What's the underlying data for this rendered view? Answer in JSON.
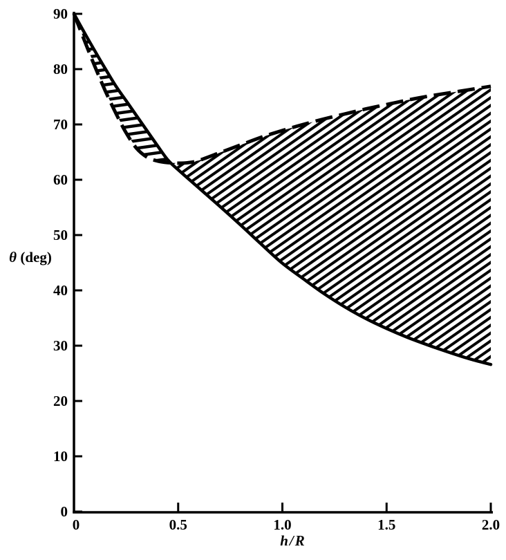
{
  "chart_data": {
    "type": "line",
    "title": "",
    "xlabel": "h/R",
    "ylabel": "θ (deg)",
    "ylabel_symbol": "θ",
    "ylabel_rest": " (deg)",
    "xlim": [
      0,
      2
    ],
    "ylim": [
      0,
      90
    ],
    "grid": false,
    "legend": null,
    "ink_color": "#000000",
    "background_color": "#ffffff",
    "x_tick_values": [
      0,
      0.5,
      1.0,
      1.5,
      2.0
    ],
    "x_tick_labels": [
      "0",
      "0.5",
      "1.0",
      "1.5",
      "2.0"
    ],
    "y_tick_values": [
      0,
      10,
      20,
      30,
      40,
      50,
      60,
      70,
      80,
      90
    ],
    "y_tick_labels": [
      "0",
      "10",
      "20",
      "30",
      "40",
      "50",
      "60",
      "70",
      "80",
      "90"
    ],
    "series": [
      {
        "name": "solid-lower-boundary",
        "style": "solid",
        "points": [
          [
            0,
            90
          ],
          [
            0.05,
            86.6
          ],
          [
            0.1,
            83.3
          ],
          [
            0.15,
            80.1
          ],
          [
            0.2,
            77.0
          ],
          [
            0.25,
            74.3
          ],
          [
            0.3,
            71.6
          ],
          [
            0.35,
            68.9
          ],
          [
            0.4,
            66.2
          ],
          [
            0.45,
            63.6
          ],
          [
            0.5,
            61.8
          ],
          [
            0.6,
            58.5
          ],
          [
            0.7,
            55.2
          ],
          [
            0.8,
            51.8
          ],
          [
            0.9,
            48.3
          ],
          [
            1.0,
            44.9
          ],
          [
            1.1,
            42.1
          ],
          [
            1.2,
            39.4
          ],
          [
            1.3,
            37.0
          ],
          [
            1.4,
            34.9
          ],
          [
            1.5,
            33.1
          ],
          [
            1.6,
            31.5
          ],
          [
            1.7,
            30.1
          ],
          [
            1.8,
            28.8
          ],
          [
            1.9,
            27.6
          ],
          [
            2.0,
            26.6
          ]
        ]
      },
      {
        "name": "dashed-upper-boundary",
        "style": "dashed",
        "points": [
          [
            0,
            90
          ],
          [
            0.05,
            85.2
          ],
          [
            0.1,
            80.5
          ],
          [
            0.15,
            76.1
          ],
          [
            0.2,
            72.1
          ],
          [
            0.25,
            68.5
          ],
          [
            0.3,
            65.7
          ],
          [
            0.35,
            64.1
          ],
          [
            0.4,
            63.4
          ],
          [
            0.45,
            63.1
          ],
          [
            0.5,
            63.0
          ],
          [
            0.55,
            63.1
          ],
          [
            0.6,
            63.5
          ],
          [
            0.7,
            64.9
          ],
          [
            0.8,
            66.3
          ],
          [
            0.9,
            67.7
          ],
          [
            1.0,
            68.9
          ],
          [
            1.1,
            70.0
          ],
          [
            1.2,
            71.0
          ],
          [
            1.3,
            71.9
          ],
          [
            1.4,
            72.8
          ],
          [
            1.5,
            73.6
          ],
          [
            1.6,
            74.4
          ],
          [
            1.7,
            75.1
          ],
          [
            1.8,
            75.7
          ],
          [
            1.9,
            76.3
          ],
          [
            2.0,
            76.9
          ]
        ]
      }
    ],
    "crossing_point": [
      0.45,
      63.4
    ],
    "hatched_regions": [
      {
        "name": "lens-region",
        "between_curves_range": [
          0,
          0.45
        ],
        "hatch_angle_deg": 8
      },
      {
        "name": "main-region",
        "between_curves_range": [
          0.45,
          2.0
        ],
        "hatch_angle_deg": 35
      }
    ]
  }
}
